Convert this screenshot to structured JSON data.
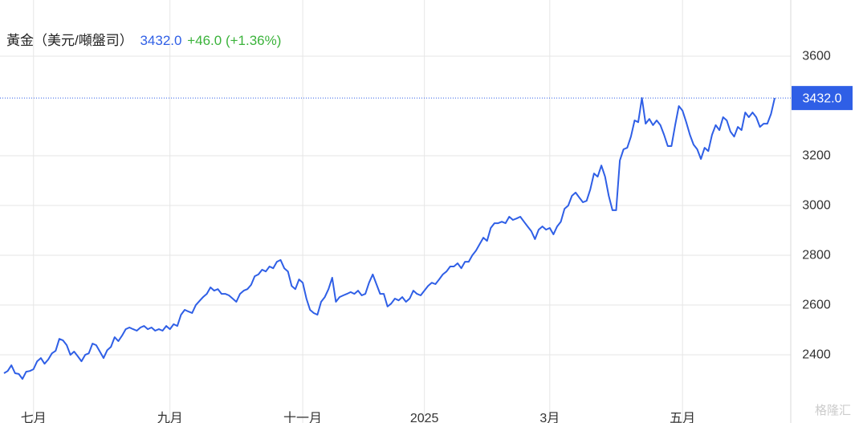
{
  "chart_data": {
    "type": "line",
    "title": "黃金（美元/噸盤司）",
    "price_text": "3432.0",
    "change_text": "+46.0 (+1.36%)",
    "watermark": "格隆汇",
    "last_price": {
      "value": 3432,
      "label": "3432.0"
    },
    "xlim": [
      0,
      209
    ],
    "ylim": [
      2126,
      3826
    ],
    "xticks": [
      {
        "value": 8,
        "label": "七月"
      },
      {
        "value": 45,
        "label": "九月"
      },
      {
        "value": 81,
        "label": "十一月"
      },
      {
        "value": 114,
        "label": "2025"
      },
      {
        "value": 148,
        "label": "3月"
      },
      {
        "value": 184,
        "label": "五月"
      }
    ],
    "yticks": [
      2400,
      2600,
      2800,
      3000,
      3200,
      3600
    ],
    "grid": true,
    "series": [
      {
        "name": "黃金",
        "color": "#2f5fe6",
        "values": [
          2326,
          2335,
          2358,
          2326,
          2323,
          2303,
          2332,
          2335,
          2342,
          2374,
          2387,
          2364,
          2381,
          2406,
          2416,
          2464,
          2458,
          2439,
          2400,
          2413,
          2394,
          2374,
          2400,
          2406,
          2445,
          2439,
          2413,
          2387,
          2419,
          2432,
          2471,
          2455,
          2477,
          2503,
          2510,
          2503,
          2497,
          2510,
          2516,
          2503,
          2510,
          2497,
          2503,
          2497,
          2516,
          2503,
          2523,
          2516,
          2561,
          2581,
          2574,
          2568,
          2600,
          2616,
          2632,
          2645,
          2671,
          2658,
          2664,
          2645,
          2645,
          2639,
          2626,
          2613,
          2645,
          2658,
          2664,
          2681,
          2716,
          2723,
          2742,
          2735,
          2755,
          2748,
          2774,
          2781,
          2748,
          2735,
          2677,
          2664,
          2703,
          2690,
          2626,
          2581,
          2568,
          2561,
          2613,
          2632,
          2664,
          2710,
          2613,
          2632,
          2639,
          2645,
          2652,
          2645,
          2658,
          2639,
          2645,
          2690,
          2723,
          2684,
          2645,
          2645,
          2594,
          2606,
          2626,
          2619,
          2632,
          2613,
          2626,
          2658,
          2645,
          2639,
          2658,
          2677,
          2690,
          2684,
          2703,
          2723,
          2735,
          2755,
          2755,
          2768,
          2748,
          2774,
          2774,
          2800,
          2819,
          2845,
          2871,
          2858,
          2910,
          2929,
          2929,
          2935,
          2929,
          2955,
          2942,
          2948,
          2955,
          2935,
          2916,
          2897,
          2865,
          2903,
          2916,
          2903,
          2910,
          2884,
          2916,
          2935,
          2987,
          3000,
          3039,
          3052,
          3032,
          3013,
          3019,
          3065,
          3129,
          3116,
          3161,
          3116,
          3039,
          2981,
          2981,
          3181,
          3226,
          3232,
          3277,
          3342,
          3335,
          3432,
          3329,
          3348,
          3323,
          3342,
          3323,
          3284,
          3239,
          3239,
          3323,
          3400,
          3381,
          3335,
          3284,
          3245,
          3226,
          3187,
          3232,
          3219,
          3284,
          3323,
          3303,
          3355,
          3342,
          3297,
          3277,
          3316,
          3303,
          3374,
          3355,
          3374,
          3355,
          3316,
          3329,
          3329,
          3368,
          3432
        ]
      }
    ]
  }
}
